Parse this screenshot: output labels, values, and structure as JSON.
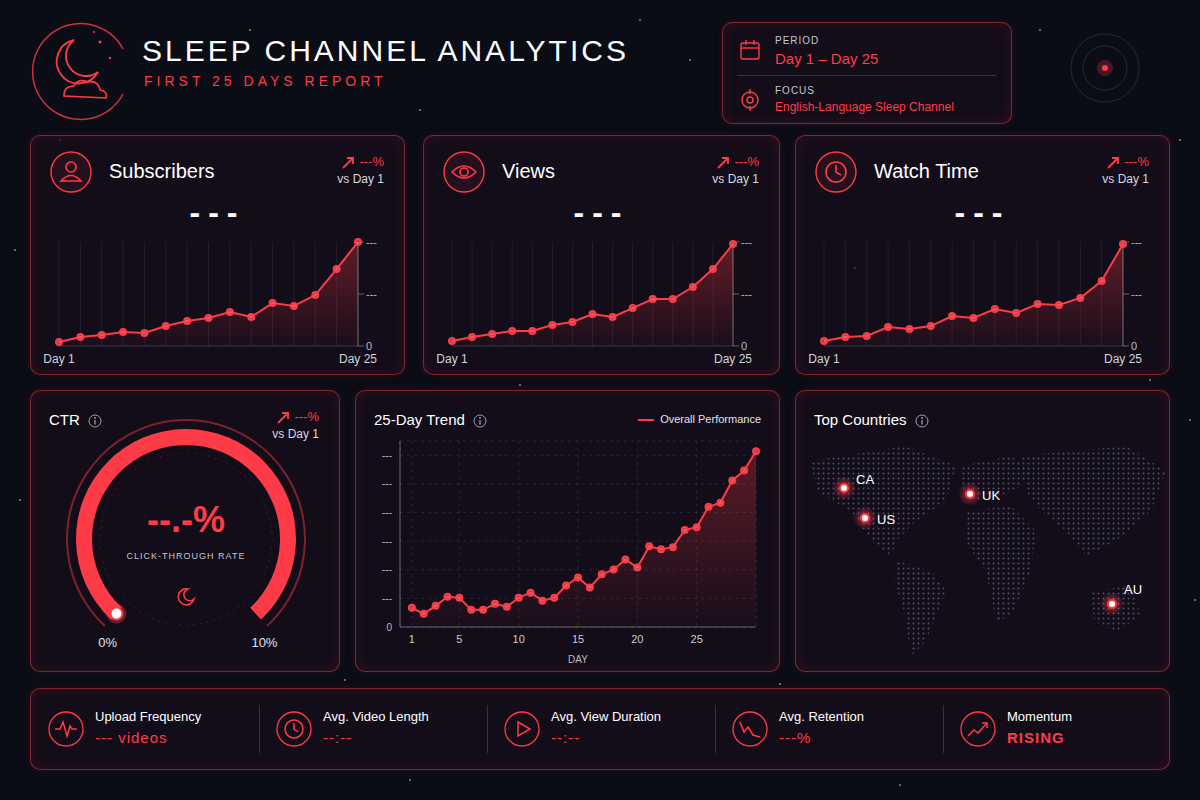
{
  "header": {
    "title": "SLEEP CHANNEL ANALYTICS",
    "subtitle": "FIRST 25 DAYS REPORT",
    "period_label": "PERIOD",
    "period": "Day 1 – Day 25",
    "focus_label": "FOCUS",
    "focus": "English-Language Sleep Channel"
  },
  "chart_data": [
    {
      "type": "area",
      "title": "Subscribers",
      "kpi_value": "---",
      "change": "---%",
      "change_label": "vs Day 1",
      "categories": [
        "Day 1",
        null,
        null,
        null,
        null,
        null,
        null,
        null,
        null,
        null,
        null,
        null,
        null,
        null,
        "Day 25"
      ],
      "values": [
        3.8,
        8.7,
        10.6,
        13.5,
        12.5,
        19.2,
        24.0,
        26.9,
        32.7,
        27.9,
        41.3,
        38.5,
        49.0,
        74.0,
        100
      ],
      "color": "#ff3b47",
      "ylim": [
        0,
        100
      ],
      "yticks": [
        0,
        {
          "value": 50,
          "label": "---"
        },
        {
          "value": 100,
          "label": "---"
        }
      ],
      "grid": true
    },
    {
      "type": "area",
      "title": "Views",
      "kpi_value": "---",
      "change": "---%",
      "change_label": "vs Day 1",
      "categories": [
        "Day 1",
        null,
        null,
        null,
        null,
        null,
        null,
        null,
        null,
        null,
        null,
        null,
        null,
        null,
        "Day 25"
      ],
      "values": [
        4.8,
        8.7,
        11.5,
        14.4,
        14.4,
        20.2,
        23.1,
        30.8,
        27.9,
        36.5,
        45.2,
        45.2,
        56.7,
        74.0,
        98
      ],
      "color": "#ff3b47",
      "ylim": [
        0,
        100
      ],
      "yticks": [
        0,
        {
          "value": 50,
          "label": "---"
        },
        {
          "value": 100,
          "label": "---"
        }
      ],
      "grid": true
    },
    {
      "type": "area",
      "title": "Watch Time",
      "kpi_value": "---",
      "change": "---%",
      "change_label": "vs Day 1",
      "categories": [
        "Day 1",
        null,
        null,
        null,
        null,
        null,
        null,
        null,
        null,
        null,
        null,
        null,
        null,
        null,
        "Day 25"
      ],
      "values": [
        4.8,
        8.7,
        9.6,
        18.3,
        16.3,
        19.2,
        28.8,
        26.9,
        35.6,
        31.7,
        40.4,
        39.4,
        46.2,
        62.5,
        98
      ],
      "color": "#ff3b47",
      "ylim": [
        0,
        100
      ],
      "yticks": [
        0,
        {
          "value": 50,
          "label": "---"
        },
        {
          "value": 100,
          "label": "---"
        }
      ],
      "grid": true
    },
    {
      "type": "gauge",
      "title": "CTR",
      "change": "---%",
      "change_label": "vs Day 1",
      "value_label": "--.-%",
      "subtitle": "CLICK-THROUGH RATE",
      "ylim": [
        0,
        10
      ],
      "yticks": [
        {
          "value": 0,
          "label": "0%"
        },
        {
          "value": 10,
          "label": "10%"
        }
      ],
      "color": "#ff3b47"
    },
    {
      "type": "area",
      "title": "25-Day Trend",
      "x": [
        1,
        2,
        3,
        4,
        5,
        6,
        7,
        8,
        9,
        10,
        11,
        12,
        13,
        14,
        15,
        16,
        17,
        18,
        19,
        20,
        21,
        22,
        23,
        24,
        25,
        26,
        27,
        28,
        29,
        30
      ],
      "series": [
        {
          "name": "Overall Performance",
          "color": "#ff3b47",
          "values": [
            6.7,
            4.6,
            7.4,
            10.6,
            10.2,
            6.0,
            6.0,
            8.1,
            7.1,
            10.2,
            12.0,
            9.2,
            10.2,
            14.5,
            17.3,
            13.8,
            18.4,
            20.1,
            23.6,
            20.8,
            28.2,
            27.2,
            27.9,
            33.9,
            34.9,
            42.0,
            43.4,
            51.2,
            54.7,
            61.4
          ]
        }
      ],
      "xlim": [
        0,
        30
      ],
      "xticks": [
        1,
        5,
        10,
        15,
        20,
        25
      ],
      "xlabel": "DAY",
      "ylim": [
        0,
        65
      ],
      "yticks": [
        0,
        {
          "value": 10,
          "label": "---"
        },
        {
          "value": 20,
          "label": "---"
        },
        {
          "value": 30,
          "label": "---"
        },
        {
          "value": 40,
          "label": "---"
        },
        {
          "value": 50,
          "label": "---"
        },
        {
          "value": 60,
          "label": "---"
        }
      ],
      "grid": true,
      "legend": "top-right"
    }
  ],
  "top_countries": {
    "title": "Top Countries",
    "countries": [
      "CA",
      "US",
      "UK",
      "AU"
    ]
  },
  "footer": [
    {
      "label": "Upload Frequency",
      "value": "--- videos"
    },
    {
      "label": "Avg. Video Length",
      "value": "--:--"
    },
    {
      "label": "Avg. View Duration",
      "value": "--:--"
    },
    {
      "label": "Avg. Retention",
      "value": "---%"
    },
    {
      "label": "Momentum",
      "value": "RISING"
    }
  ]
}
